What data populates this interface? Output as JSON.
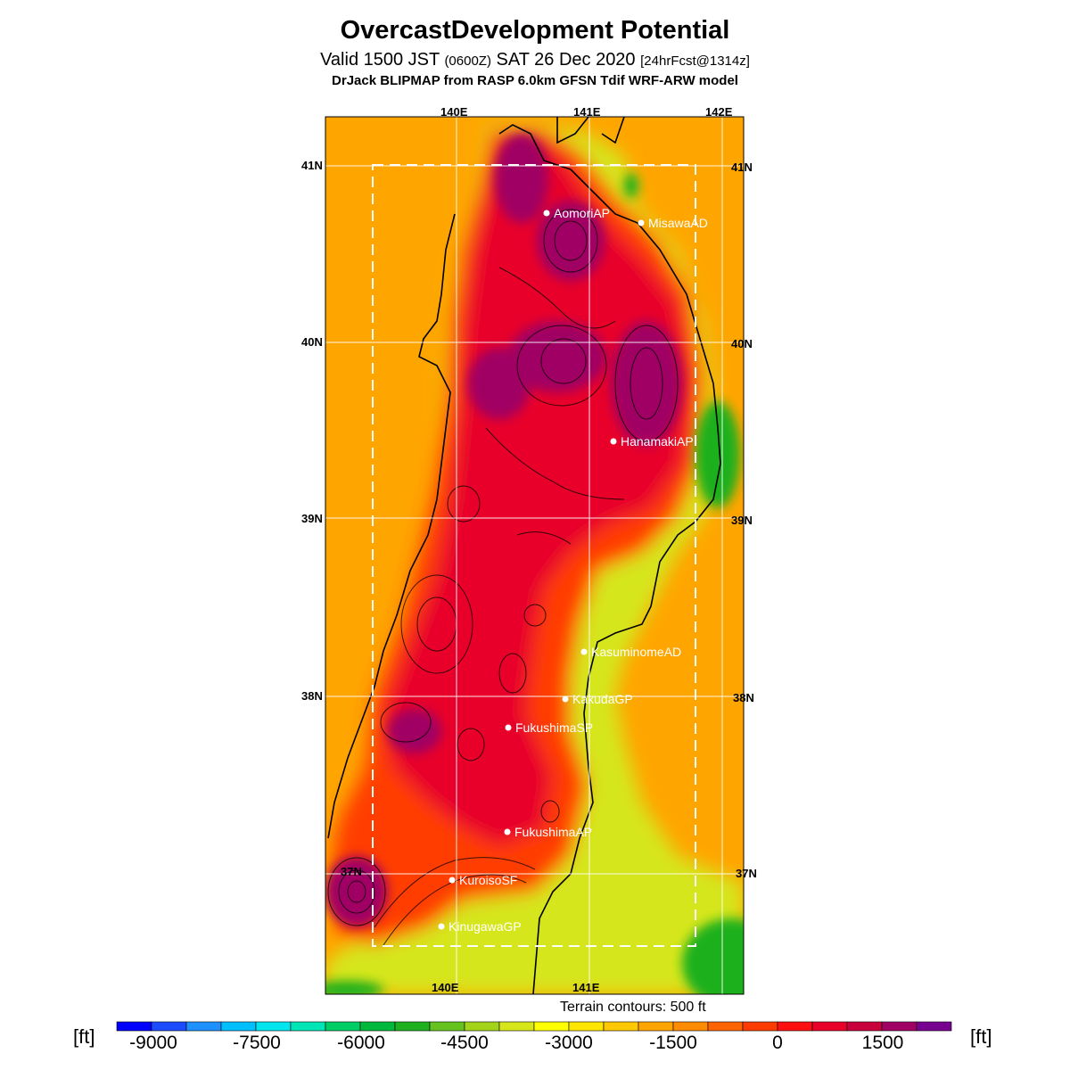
{
  "title": "OvercastDevelopment Potential",
  "subtitle": {
    "valid": "Valid 1500 JST",
    "zulu": "(0600Z)",
    "date": "SAT 26 Dec 2020",
    "forecast": "[24hrFcst@1314z]"
  },
  "model_line": "DrJack BLIPMAP from RASP 6.0km GFSN Tdif WRF-ARW model",
  "lon_labels": [
    "140E",
    "141E",
    "142E"
  ],
  "lat_labels": [
    "41N",
    "40N",
    "39N",
    "38N",
    "37N"
  ],
  "stations": [
    "AomoriAP",
    "MisawaAD",
    "HanamakiAP",
    "KasuminomeAD",
    "KakudaGP",
    "FukushimaSP",
    "FukushimaAP",
    "KuroisoSF",
    "KinugawaGP"
  ],
  "terrain_note": "Terrain contours: 500 ft",
  "unit": "[ft]",
  "colorbar": {
    "tick_labels": [
      "-9000",
      "-7500",
      "-6000",
      "-4500",
      "-3000",
      "-1500",
      "0",
      "1500"
    ],
    "colors": [
      "#0000ff",
      "#1d4bff",
      "#1e90ff",
      "#00bfff",
      "#00e5ee",
      "#00e5b5",
      "#00cd66",
      "#00b83c",
      "#1fb01f",
      "#66c21e",
      "#a3d41a",
      "#d6e61a",
      "#ffff00",
      "#ffe600",
      "#ffc800",
      "#ffa500",
      "#ff8c00",
      "#ff6400",
      "#ff3c00",
      "#ff1010",
      "#e8002a",
      "#c8003c",
      "#a00064",
      "#780090"
    ]
  },
  "colors": {
    "sea": "#ffa500",
    "land_high": "#e8002a",
    "land_mid": "#ff3c00",
    "peak": "#a00064",
    "coast_low": "#d6e61a",
    "green": "#1fb01f"
  }
}
